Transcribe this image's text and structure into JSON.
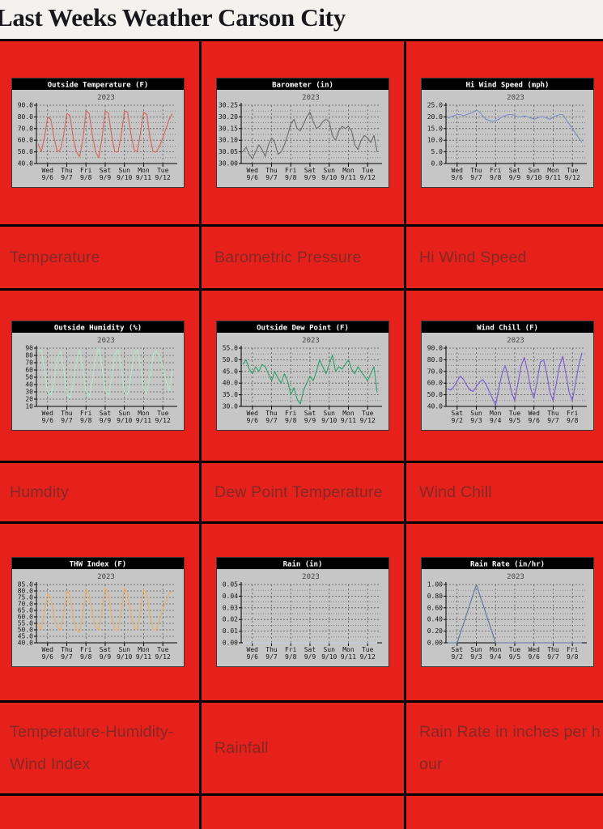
{
  "page": {
    "title": "Last Weeks Weather Carson City"
  },
  "theme": {
    "page_bg": "#f3f2ef",
    "cell_red": "#e6211c",
    "grid_black": "#000000",
    "caption_text": "#832823",
    "chart_bg": "#c6c6c6",
    "chart_titlebar": "#000000",
    "chart_title_text": "#ffffff",
    "axis_text": "#141414",
    "grid_line": "#5a5a5a"
  },
  "chart_data": [
    {
      "type": "line",
      "title": "Outside Temperature (F)",
      "subtitle": "2023",
      "caption_lines": [
        "Temperature"
      ],
      "line_color": "#d4645c",
      "ylim": [
        40,
        90
      ],
      "y_tick_labels": [
        "90.0",
        "80.0",
        "70.0",
        "60.0",
        "50.0",
        "40.0"
      ],
      "minor_grid": true,
      "x_ticks": [
        {
          "day": "Wed",
          "date": "9/6"
        },
        {
          "day": "Thu",
          "date": "9/7"
        },
        {
          "day": "Fri",
          "date": "9/8"
        },
        {
          "day": "Sat",
          "date": "9/9"
        },
        {
          "day": "Sun",
          "date": "9/10"
        },
        {
          "day": "Mon",
          "date": "9/11"
        },
        {
          "day": "Tue",
          "date": "9/12"
        }
      ],
      "values": [
        57,
        50,
        62,
        80,
        78,
        62,
        50,
        52,
        64,
        83,
        81,
        62,
        50,
        46,
        60,
        85,
        83,
        64,
        50,
        45,
        62,
        85,
        83,
        64,
        50,
        50,
        64,
        85,
        84,
        66,
        52,
        50,
        66,
        84,
        82,
        62,
        50,
        50,
        55,
        62,
        70,
        78,
        83
      ]
    },
    {
      "type": "line",
      "title": "Barometer (in)",
      "subtitle": "2023",
      "caption_lines": [
        "Barometric Pressure"
      ],
      "line_color": "#6b6b6b",
      "ylim": [
        30.0,
        30.25
      ],
      "y_tick_labels": [
        "30.25",
        "30.20",
        "30.15",
        "30.10",
        "30.05",
        "30.00"
      ],
      "minor_grid": true,
      "x_ticks": [
        {
          "day": "Wed",
          "date": "9/6"
        },
        {
          "day": "Thu",
          "date": "9/7"
        },
        {
          "day": "Fri",
          "date": "9/8"
        },
        {
          "day": "Sat",
          "date": "9/9"
        },
        {
          "day": "Sun",
          "date": "9/10"
        },
        {
          "day": "Mon",
          "date": "9/11"
        },
        {
          "day": "Tue",
          "date": "9/12"
        }
      ],
      "values": [
        30.05,
        30.07,
        30.04,
        30.02,
        30.05,
        30.08,
        30.06,
        30.03,
        30.08,
        30.11,
        30.09,
        30.04,
        30.05,
        30.08,
        30.12,
        30.17,
        30.19,
        30.15,
        30.14,
        30.17,
        30.2,
        30.22,
        30.18,
        30.15,
        30.16,
        30.18,
        30.19,
        30.18,
        30.12,
        30.1,
        30.14,
        30.16,
        30.15,
        30.16,
        30.14,
        30.08,
        30.06,
        30.1,
        30.12,
        30.11,
        30.09,
        30.12,
        30.05
      ]
    },
    {
      "type": "line",
      "title": "Hi Wind Speed (mph)",
      "subtitle": "2023",
      "caption_lines": [
        "Hi Wind Speed"
      ],
      "line_color": "#7b8fc7",
      "ylim": [
        0,
        25
      ],
      "y_tick_labels": [
        "25.0",
        "20.0",
        "15.0",
        "10.0",
        "5.0",
        "0.0"
      ],
      "minor_grid": true,
      "x_ticks": [
        {
          "day": "Wed",
          "date": "9/6"
        },
        {
          "day": "Thu",
          "date": "9/7"
        },
        {
          "day": "Fri",
          "date": "9/8"
        },
        {
          "day": "Sat",
          "date": "9/9"
        },
        {
          "day": "Sun",
          "date": "9/10"
        },
        {
          "day": "Mon",
          "date": "9/11"
        },
        {
          "day": "Tue",
          "date": "9/12"
        }
      ],
      "values": [
        19.5,
        20,
        20.5,
        21,
        21,
        20.5,
        21,
        21.5,
        22,
        23,
        22,
        20.5,
        19,
        18.5,
        18,
        18.5,
        19,
        20,
        20.5,
        21,
        21,
        20.5,
        20,
        20,
        20.5,
        20,
        19.5,
        19,
        19.5,
        20,
        20,
        19.5,
        19,
        20,
        20.5,
        21,
        21,
        19,
        17,
        15,
        13,
        11,
        9
      ]
    },
    {
      "type": "line",
      "title": "Outside Humidity (%)",
      "subtitle": "2023",
      "caption_lines": [
        "Humdity"
      ],
      "line_color": "#b2e9c6",
      "ylim": [
        10,
        90
      ],
      "y_tick_labels": [
        "90",
        "80",
        "70",
        "60",
        "50",
        "40",
        "30",
        "20",
        "10"
      ],
      "minor_grid": false,
      "x_ticks": [
        {
          "day": "Wed",
          "date": "9/6"
        },
        {
          "day": "Thu",
          "date": "9/7"
        },
        {
          "day": "Fri",
          "date": "9/8"
        },
        {
          "day": "Sat",
          "date": "9/9"
        },
        {
          "day": "Sun",
          "date": "9/10"
        },
        {
          "day": "Mon",
          "date": "9/11"
        },
        {
          "day": "Tue",
          "date": "9/12"
        }
      ],
      "values": [
        85,
        88,
        60,
        30,
        25,
        45,
        75,
        86,
        62,
        28,
        22,
        42,
        72,
        88,
        62,
        30,
        24,
        45,
        78,
        90,
        65,
        32,
        25,
        48,
        80,
        88,
        64,
        30,
        26,
        50,
        82,
        88,
        66,
        34,
        28,
        52,
        80,
        86,
        80,
        65,
        45,
        32,
        60
      ]
    },
    {
      "type": "line",
      "title": "Outside Dew Point (F)",
      "subtitle": "2023",
      "caption_lines": [
        "Dew Point Temperature"
      ],
      "line_color": "#2f9e6a",
      "ylim": [
        30,
        55
      ],
      "y_tick_labels": [
        "55.0",
        "50.0",
        "45.0",
        "40.0",
        "35.0",
        "30.0"
      ],
      "minor_grid": true,
      "x_ticks": [
        {
          "day": "Wed",
          "date": "9/6"
        },
        {
          "day": "Thu",
          "date": "9/7"
        },
        {
          "day": "Fri",
          "date": "9/8"
        },
        {
          "day": "Sat",
          "date": "9/9"
        },
        {
          "day": "Sun",
          "date": "9/10"
        },
        {
          "day": "Mon",
          "date": "9/11"
        },
        {
          "day": "Tue",
          "date": "9/12"
        }
      ],
      "values": [
        48,
        50,
        46,
        44,
        47,
        45,
        48,
        47,
        44,
        41,
        45,
        42,
        40,
        44,
        41,
        35,
        38,
        33,
        31,
        37,
        40,
        43,
        41,
        45,
        50,
        47,
        44,
        48,
        52,
        45,
        47,
        46,
        48,
        50,
        46,
        44,
        47,
        45,
        43,
        41,
        44,
        47,
        36
      ]
    },
    {
      "type": "line",
      "title": "Wind Chill (F)",
      "subtitle": "2023",
      "caption_lines": [
        "Wind Chill"
      ],
      "line_color": "#7a5ad0",
      "ylim": [
        40,
        90
      ],
      "y_tick_labels": [
        "90.0",
        "80.0",
        "70.0",
        "60.0",
        "50.0",
        "40.0"
      ],
      "minor_grid": true,
      "x_ticks": [
        {
          "day": "Sat",
          "date": "9/2"
        },
        {
          "day": "Sun",
          "date": "9/3"
        },
        {
          "day": "Mon",
          "date": "9/4"
        },
        {
          "day": "Tue",
          "date": "9/5"
        },
        {
          "day": "Wed",
          "date": "9/6"
        },
        {
          "day": "Thu",
          "date": "9/7"
        },
        {
          "day": "Fri",
          "date": "9/8"
        }
      ],
      "values": [
        55,
        54,
        57,
        62,
        66,
        63,
        58,
        54,
        53,
        57,
        61,
        63,
        59,
        53,
        47,
        41,
        55,
        68,
        75,
        65,
        52,
        45,
        60,
        75,
        82,
        70,
        55,
        47,
        62,
        78,
        80,
        68,
        52,
        45,
        60,
        75,
        83,
        68,
        52,
        45,
        60,
        75,
        86
      ]
    },
    {
      "type": "line",
      "title": "THW Index (F)",
      "subtitle": "2023",
      "caption_lines": [
        "Temperature-Humidity-",
        "Wind Index"
      ],
      "line_color": "#efae62",
      "ylim": [
        40,
        85
      ],
      "y_tick_labels": [
        "85.0",
        "80.0",
        "75.0",
        "70.0",
        "65.0",
        "60.0",
        "55.0",
        "50.0",
        "45.0",
        "40.0"
      ],
      "minor_grid": false,
      "x_ticks": [
        {
          "day": "Wed",
          "date": "9/6"
        },
        {
          "day": "Thu",
          "date": "9/7"
        },
        {
          "day": "Fri",
          "date": "9/8"
        },
        {
          "day": "Sat",
          "date": "9/9"
        },
        {
          "day": "Sun",
          "date": "9/10"
        },
        {
          "day": "Mon",
          "date": "9/11"
        },
        {
          "day": "Tue",
          "date": "9/12"
        }
      ],
      "values": [
        55,
        50,
        64,
        78,
        75,
        60,
        52,
        50,
        62,
        80,
        77,
        60,
        50,
        48,
        62,
        81,
        78,
        62,
        52,
        50,
        64,
        82,
        78,
        60,
        50,
        50,
        64,
        82,
        79,
        62,
        52,
        50,
        65,
        81,
        78,
        60,
        50,
        50,
        58,
        66,
        72,
        78,
        80
      ]
    },
    {
      "type": "line",
      "title": "Rain (in)",
      "subtitle": "2023",
      "caption_lines": [
        "Rainfall"
      ],
      "line_color": "#c4d2ec",
      "ylim": [
        0,
        0.05
      ],
      "y_tick_labels": [
        "0.05",
        "0.04",
        "0.03",
        "0.02",
        "0.01",
        "0.00"
      ],
      "minor_grid": true,
      "x_ticks": [
        {
          "day": "Wed",
          "date": "9/6"
        },
        {
          "day": "Thu",
          "date": "9/7"
        },
        {
          "day": "Fri",
          "date": "9/8"
        },
        {
          "day": "Sat",
          "date": "9/9"
        },
        {
          "day": "Sun",
          "date": "9/10"
        },
        {
          "day": "Mon",
          "date": "9/11"
        },
        {
          "day": "Tue",
          "date": "9/12"
        }
      ],
      "values": [
        0,
        0,
        0,
        0,
        0,
        0,
        0,
        0,
        0,
        0,
        0,
        0,
        0,
        0,
        0,
        0,
        0,
        0,
        0,
        0,
        0,
        0,
        0,
        0,
        0,
        0,
        0,
        0,
        0,
        0,
        0,
        0,
        0,
        0,
        0,
        0,
        0,
        0,
        0,
        0,
        0,
        0,
        0
      ]
    },
    {
      "type": "line",
      "title": "Rain Rate (in/hr)",
      "subtitle": "2023",
      "caption_lines": [
        "Rain Rate in inches per h",
        "our"
      ],
      "line_color": "#5f739e",
      "ylim": [
        0,
        1.0
      ],
      "y_tick_labels": [
        "1.00",
        "0.80",
        "0.60",
        "0.40",
        "0.20",
        "0.00"
      ],
      "minor_grid": true,
      "x_ticks": [
        {
          "day": "Sat",
          "date": "9/2"
        },
        {
          "day": "Sun",
          "date": "9/3"
        },
        {
          "day": "Mon",
          "date": "9/4"
        },
        {
          "day": "Tue",
          "date": "9/5"
        },
        {
          "day": "Wed",
          "date": "9/6"
        },
        {
          "day": "Thu",
          "date": "9/7"
        },
        {
          "day": "Fri",
          "date": "9/8"
        }
      ],
      "values": [
        0,
        0,
        0,
        0,
        0.17,
        0.33,
        0.5,
        0.67,
        0.83,
        1,
        0.83,
        0.67,
        0.5,
        0.33,
        0.17,
        0,
        0,
        0,
        0,
        0,
        0,
        0,
        0,
        0,
        0,
        0,
        0,
        0,
        0,
        0,
        0,
        0,
        0,
        0,
        0,
        0,
        0,
        0,
        0,
        0,
        0,
        0,
        0
      ]
    }
  ]
}
